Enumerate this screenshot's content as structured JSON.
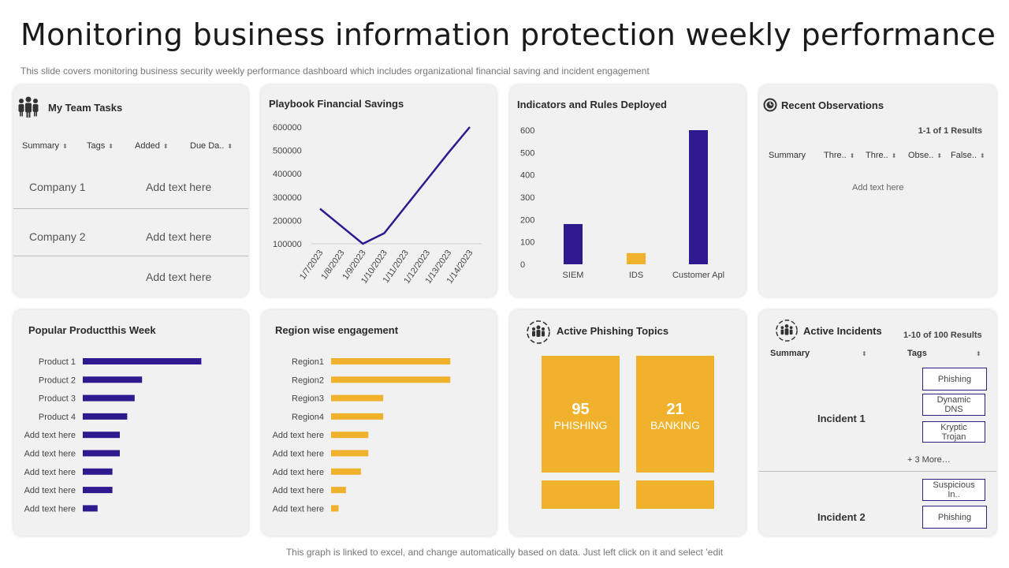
{
  "header": {
    "title": "Monitoring business information protection weekly performance",
    "subtitle": "This slide covers monitoring business security weekly performance dashboard which includes organizational financial saving and incident engagement"
  },
  "footer": "This graph is linked to excel, and change automatically based on data. Just left click on it and select ’edit",
  "colors": {
    "primary": "#2e1a8e",
    "accent": "#f0b22c",
    "card": "#f1f1f1"
  },
  "team_tasks": {
    "title": "My Team Tasks",
    "icon": "team-icon",
    "columns": [
      "Summary",
      "Tags",
      "Added",
      "Due Da.."
    ],
    "rows": [
      {
        "name": "Company  1",
        "value": "Add text here"
      },
      {
        "name": "Company  2",
        "value": "Add text here"
      },
      {
        "name": "",
        "value": "Add text here"
      }
    ]
  },
  "savings": {
    "title": "Playbook Financial Savings"
  },
  "indicators": {
    "title": "Indicators and Rules Deployed"
  },
  "observations": {
    "title": "Recent Observations",
    "icon": "clock-icon",
    "results": "1-1 of 1 Results",
    "columns": [
      "Summary",
      "Thre..",
      "Thre..",
      "Obse..",
      "False.."
    ],
    "placeholder": "Add text here"
  },
  "products": {
    "title": "Popular Productthis Week"
  },
  "regions": {
    "title": "Region wise engagement"
  },
  "phishing": {
    "title": "Active Phishing Topics",
    "icon": "team-icon",
    "boxes": [
      {
        "number": "95",
        "label": "PHISHING"
      },
      {
        "number": "21",
        "label": "BANKING"
      }
    ]
  },
  "incidents": {
    "title": "Active Incidents",
    "icon": "team-icon",
    "results": "1-10 of 100 Results",
    "columns": [
      "Summary",
      "Tags"
    ],
    "items": [
      {
        "name": "Incident 1",
        "tags": [
          "Phishing",
          "Dynamic DNS",
          "Kryptic Trojan"
        ],
        "more": "+ 3 More…"
      },
      {
        "name": "Incident 2",
        "tags": [
          "Suspicious In..",
          "Phishing"
        ]
      }
    ]
  },
  "chart_data": [
    {
      "type": "line",
      "title": "Playbook Financial Savings",
      "x": [
        "1/7/2023",
        "1/8/2023",
        "1/9/2023",
        "1/10/2023",
        "1/11/2023",
        "1/12/2023",
        "1/13/2023",
        "1/14/2023"
      ],
      "y_ticks": [
        "100000",
        "200000",
        "300000",
        "400000",
        "500000",
        "600000"
      ],
      "values": [
        250000,
        175000,
        100000,
        145000,
        260000,
        375000,
        490000,
        600000
      ],
      "ylim": [
        100000,
        600000
      ]
    },
    {
      "type": "bar",
      "title": "Indicators and Rules Deployed",
      "categories": [
        "SIEM",
        "IDS",
        "Customer Apl"
      ],
      "values": [
        180,
        50,
        600
      ],
      "colors": [
        "#2e1a8e",
        "#f0b22c",
        "#2e1a8e"
      ],
      "y_ticks": [
        "0",
        "100",
        "200",
        "300",
        "400",
        "500",
        "600"
      ],
      "ylim": [
        0,
        600
      ]
    },
    {
      "type": "bar",
      "orientation": "horizontal",
      "title": "Popular Productthis Week",
      "categories": [
        "Product 1",
        "Product 2",
        "Product 3",
        "Product 4",
        "Add text here",
        "Add text here",
        "Add text here",
        "Add text here",
        "Add text here"
      ],
      "values": [
        16,
        8,
        7,
        6,
        5,
        5,
        4,
        4,
        2
      ],
      "color": "#2e1a8e"
    },
    {
      "type": "bar",
      "orientation": "horizontal",
      "title": "Region wise engagement",
      "categories": [
        "Region1",
        "Region2",
        "Region3",
        "Region4",
        "Add text here",
        "Add text here",
        "Add text here",
        "Add text here",
        "Add text here"
      ],
      "values": [
        16,
        16,
        7,
        7,
        5,
        5,
        4,
        2,
        1
      ],
      "color": "#f0b22c"
    }
  ]
}
